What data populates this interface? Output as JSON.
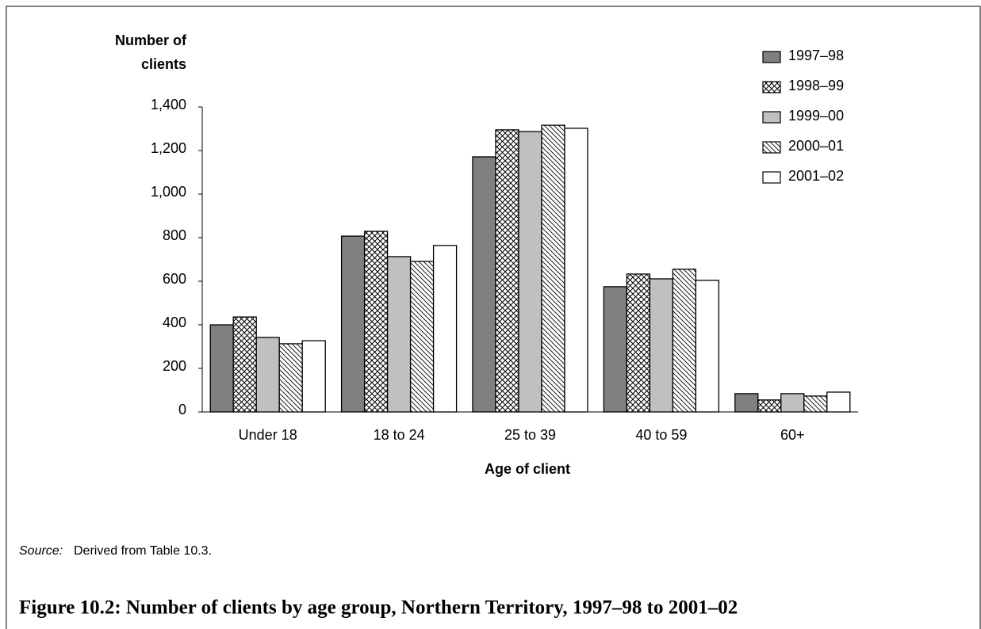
{
  "chart_data": {
    "type": "bar",
    "title": "Figure 10.2:  Number of clients by age group, Northern Territory, 1997–98 to 2001–02",
    "y_label": [
      "Number of",
      "clients"
    ],
    "x_label": "Age of client",
    "source_label": "Source:",
    "source_text": "Derived from Table 10.3.",
    "categories": [
      "Under 18",
      "18 to 24",
      "25 to 39",
      "40 to 59",
      "60+"
    ],
    "series": [
      {
        "name": "1997–98",
        "color": "#808080",
        "pattern": "solid",
        "values": [
          400,
          807,
          1171,
          575,
          84
        ]
      },
      {
        "name": "1998–99",
        "color": "#ffffff",
        "pattern": "crosshatch",
        "values": [
          436,
          829,
          1295,
          633,
          55
        ]
      },
      {
        "name": "1999–00",
        "color": "#c0c0c0",
        "pattern": "solid",
        "values": [
          342,
          713,
          1287,
          611,
          84
        ]
      },
      {
        "name": "2000–01",
        "color": "#ffffff",
        "pattern": "diagonal",
        "values": [
          313,
          691,
          1316,
          655,
          73
        ]
      },
      {
        "name": "2001–02",
        "color": "#ffffff",
        "pattern": "solid",
        "values": [
          327,
          764,
          1302,
          604,
          91
        ]
      }
    ],
    "ylim": [
      0,
      1400
    ],
    "yticks": [
      0,
      200,
      400,
      600,
      800,
      {
        "value": 1000,
        "label": "1,000"
      },
      {
        "value": 1200,
        "label": "1,200"
      },
      {
        "value": 1400,
        "label": "1,400"
      }
    ],
    "grid": false,
    "legend": "top-right"
  }
}
